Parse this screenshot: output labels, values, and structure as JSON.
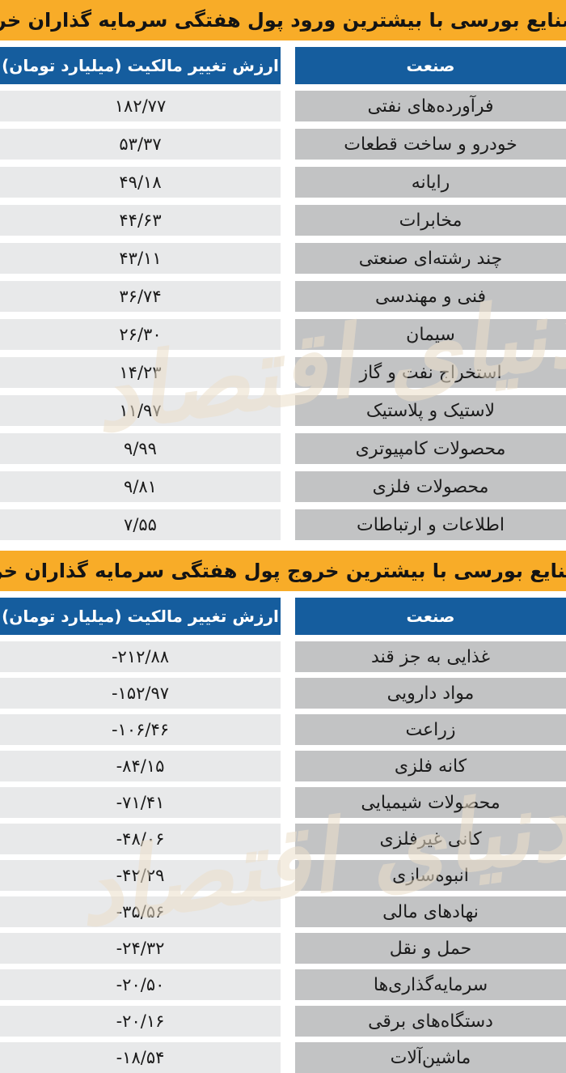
{
  "colors": {
    "header_yellow": "#F8AC28",
    "header_blue": "#155D9E",
    "industry_cell_gray": "#C2C3C4",
    "value_cell_gray": "#E8E9EA",
    "watermark_beige": "#ECDFCA"
  },
  "watermark": {
    "text": "دنیای اقتصاد"
  },
  "inflow_table": {
    "title": "صنایع بورسی با بیشترین ورود پول هفتگی سرمایه گذاران خرد",
    "col_value": "ارزش تغییر مالکیت (میلیارد تومان)",
    "col_industry": "صنعت",
    "rows": [
      {
        "industry": "فرآورده‌های نفتی",
        "value": "۱۸۲/۷۷"
      },
      {
        "industry": "خودرو و ساخت قطعات",
        "value": "۵۳/۳۷"
      },
      {
        "industry": "رایانه",
        "value": "۴۹/۱۸"
      },
      {
        "industry": "مخابرات",
        "value": "۴۴/۶۳"
      },
      {
        "industry": "چند رشته‌ای صنعتی",
        "value": "۴۳/۱۱"
      },
      {
        "industry": "فنی و مهندسی",
        "value": "۳۶/۷۴"
      },
      {
        "industry": "سیمان",
        "value": "۲۶/۳۰"
      },
      {
        "industry": "استخراج نفت و گاز",
        "value": "۱۴/۲۳"
      },
      {
        "industry": "لاستیک و پلاستیک",
        "value": "۱۱/۹۷"
      },
      {
        "industry": "محصولات کامپیوتری",
        "value": "۹/۹۹"
      },
      {
        "industry": "محصولات فلزی",
        "value": "۹/۸۱"
      },
      {
        "industry": "اطلاعات و ارتباطات",
        "value": "۷/۵۵"
      }
    ]
  },
  "outflow_table": {
    "title": "صنایع بورسی با بیشترین خروج پول هفتگی سرمایه گذاران خرد",
    "col_value": "ارزش تغییر مالکیت (میلیارد تومان)",
    "col_industry": "صنعت",
    "rows": [
      {
        "industry": "غذایی به جز قند",
        "value": "-۲۱۲/۸۸"
      },
      {
        "industry": "مواد دارویی",
        "value": "-۱۵۲/۹۷"
      },
      {
        "industry": "زراعت",
        "value": "-۱۰۶/۴۶"
      },
      {
        "industry": "کانه فلزی",
        "value": "-۸۴/۱۵"
      },
      {
        "industry": "محصولات شیمیایی",
        "value": "-۷۱/۴۱"
      },
      {
        "industry": "کانی غیرفلزی",
        "value": "-۴۸/۰۶"
      },
      {
        "industry": "انبوه‌سازی",
        "value": "-۴۲/۲۹"
      },
      {
        "industry": "نهادهای مالی",
        "value": "-۳۵/۵۶"
      },
      {
        "industry": "حمل و نقل",
        "value": "-۲۴/۳۲"
      },
      {
        "industry": "سرمایه‌گذاری‌ها",
        "value": "-۲۰/۵۰"
      },
      {
        "industry": "دستگاه‌های برقی",
        "value": "-۲۰/۱۶"
      },
      {
        "industry": "ماشین‌آلات",
        "value": "-۱۸/۵۴"
      }
    ]
  },
  "chart_data": [
    {
      "type": "table",
      "title": "صنایع بورسی با بیشترین ورود پول هفتگی سرمایه گذاران خرد",
      "columns": [
        "صنعت",
        "ارزش تغییر مالکیت (میلیارد تومان)"
      ],
      "rows": [
        [
          "فرآورده‌های نفتی",
          182.77
        ],
        [
          "خودرو و ساخت قطعات",
          53.37
        ],
        [
          "رایانه",
          49.18
        ],
        [
          "مخابرات",
          44.63
        ],
        [
          "چند رشته‌ای صنعتی",
          43.11
        ],
        [
          "فنی و مهندسی",
          36.74
        ],
        [
          "سیمان",
          26.3
        ],
        [
          "استخراج نفت و گاز",
          14.23
        ],
        [
          "لاستیک و پلاستیک",
          11.97
        ],
        [
          "محصولات کامپیوتری",
          9.99
        ],
        [
          "محصولات فلزی",
          9.81
        ],
        [
          "اطلاعات و ارتباطات",
          7.55
        ]
      ]
    },
    {
      "type": "table",
      "title": "صنایع بورسی با بیشترین خروج پول هفتگی سرمایه گذاران خرد",
      "columns": [
        "صنعت",
        "ارزش تغییر مالکیت (میلیارد تومان)"
      ],
      "rows": [
        [
          "غذایی به جز قند",
          -212.88
        ],
        [
          "مواد دارویی",
          -152.97
        ],
        [
          "زراعت",
          -106.46
        ],
        [
          "کانه فلزی",
          -84.15
        ],
        [
          "محصولات شیمیایی",
          -71.41
        ],
        [
          "کانی غیرفلزی",
          -48.06
        ],
        [
          "انبوه‌سازی",
          -42.29
        ],
        [
          "نهادهای مالی",
          -35.56
        ],
        [
          "حمل و نقل",
          -24.32
        ],
        [
          "سرمایه‌گذاری‌ها",
          -20.5
        ],
        [
          "دستگاه‌های برقی",
          -20.16
        ],
        [
          "ماشین‌آلات",
          -18.54
        ]
      ]
    }
  ]
}
